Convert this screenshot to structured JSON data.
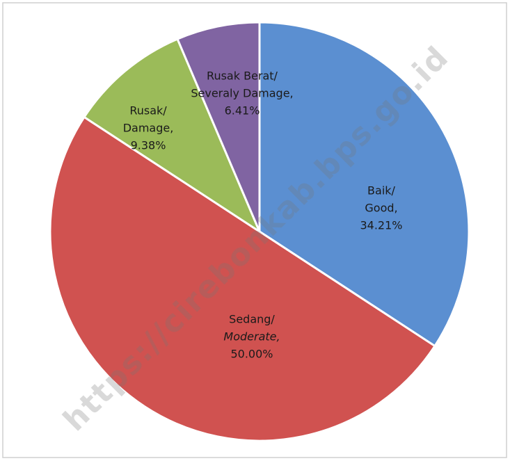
{
  "chart_data": {
    "type": "pie",
    "watermark": "https://cirebonkab.bps.go.id",
    "categories": [
      [
        "Baik/",
        "Good,"
      ],
      [
        "Sedang/",
        "Moderate,"
      ],
      [
        "Rusak/",
        "Damage,"
      ],
      [
        "Rusak Berat/",
        "Severaly Damage,"
      ]
    ],
    "values": [
      34.21,
      50.0,
      9.38,
      6.41
    ],
    "value_labels": [
      "34.21%",
      "50.00%",
      "9.38%",
      "6.41%"
    ],
    "colors": [
      "#5b8fd1",
      "#d05250",
      "#9bbb59",
      "#8064a2"
    ]
  }
}
